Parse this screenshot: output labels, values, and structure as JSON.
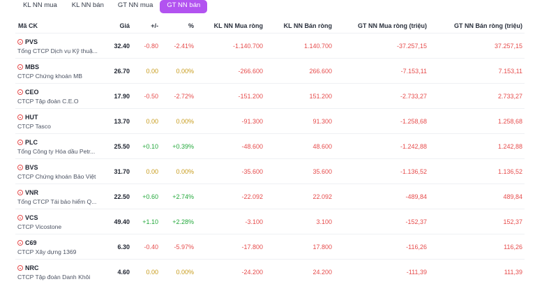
{
  "tabs": [
    {
      "label": "KL NN mua",
      "active": false
    },
    {
      "label": "KL NN bán",
      "active": false
    },
    {
      "label": "GT NN mua",
      "active": false
    },
    {
      "label": "GT NN bán",
      "active": true
    }
  ],
  "columns": [
    "Mã CK",
    "Giá",
    "+/-",
    "%",
    "KL NN Mua ròng",
    "KL NN Bán ròng",
    "GT NN Mua ròng (triệu)",
    "GT NN Bán ròng (triệu)"
  ],
  "rows": [
    {
      "ticker": "PVS",
      "company": "Tổng CTCP Dịch vụ Kỹ thuậ...",
      "price": "32.40",
      "change": "-0.80",
      "pct": "-2.41%",
      "trend": "neg",
      "kl_mua": "-1.140.700",
      "kl_ban": "1.140.700",
      "gt_mua": "-37.257,15",
      "gt_ban": "37.257,15"
    },
    {
      "ticker": "MBS",
      "company": "CTCP Chứng khoán MB",
      "price": "26.70",
      "change": "0.00",
      "pct": "0.00%",
      "trend": "ref",
      "kl_mua": "-266.600",
      "kl_ban": "266.600",
      "gt_mua": "-7.153,11",
      "gt_ban": "7.153,11"
    },
    {
      "ticker": "CEO",
      "company": "CTCP Tập đoàn C.E.O",
      "price": "17.90",
      "change": "-0.50",
      "pct": "-2.72%",
      "trend": "neg",
      "kl_mua": "-151.200",
      "kl_ban": "151.200",
      "gt_mua": "-2.733,27",
      "gt_ban": "2.733,27"
    },
    {
      "ticker": "HUT",
      "company": "CTCP Tasco",
      "price": "13.70",
      "change": "0.00",
      "pct": "0.00%",
      "trend": "ref",
      "kl_mua": "-91.300",
      "kl_ban": "91.300",
      "gt_mua": "-1.258,68",
      "gt_ban": "1.258,68"
    },
    {
      "ticker": "PLC",
      "company": "Tổng Công ty Hóa dầu Petr...",
      "price": "25.50",
      "change": "+0.10",
      "pct": "+0.39%",
      "trend": "pos",
      "kl_mua": "-48.600",
      "kl_ban": "48.600",
      "gt_mua": "-1.242,88",
      "gt_ban": "1.242,88"
    },
    {
      "ticker": "BVS",
      "company": "CTCP Chứng khoán Bảo Việt",
      "price": "31.70",
      "change": "0.00",
      "pct": "0.00%",
      "trend": "ref",
      "kl_mua": "-35.600",
      "kl_ban": "35.600",
      "gt_mua": "-1.136,52",
      "gt_ban": "1.136,52"
    },
    {
      "ticker": "VNR",
      "company": "Tổng CTCP Tái bảo hiểm Q...",
      "price": "22.50",
      "change": "+0.60",
      "pct": "+2.74%",
      "trend": "pos",
      "kl_mua": "-22.092",
      "kl_ban": "22.092",
      "gt_mua": "-489,84",
      "gt_ban": "489,84"
    },
    {
      "ticker": "VCS",
      "company": "CTCP Vicostone",
      "price": "49.40",
      "change": "+1.10",
      "pct": "+2.28%",
      "trend": "pos",
      "kl_mua": "-3.100",
      "kl_ban": "3.100",
      "gt_mua": "-152,37",
      "gt_ban": "152,37"
    },
    {
      "ticker": "C69",
      "company": "CTCP Xây dựng 1369",
      "price": "6.30",
      "change": "-0.40",
      "pct": "-5.97%",
      "trend": "neg",
      "kl_mua": "-17.800",
      "kl_ban": "17.800",
      "gt_mua": "-116,26",
      "gt_ban": "116,26"
    },
    {
      "ticker": "NRC",
      "company": "CTCP Tập đoàn Danh Khôi",
      "price": "4.60",
      "change": "0.00",
      "pct": "0.00%",
      "trend": "ref",
      "kl_mua": "-24.200",
      "kl_ban": "24.200",
      "gt_mua": "-111,39",
      "gt_ban": "111,39"
    }
  ],
  "colors": {
    "accent": "#b253f0",
    "negative": "#e64b4b",
    "positive": "#22a83a",
    "reference": "#c79a18"
  }
}
